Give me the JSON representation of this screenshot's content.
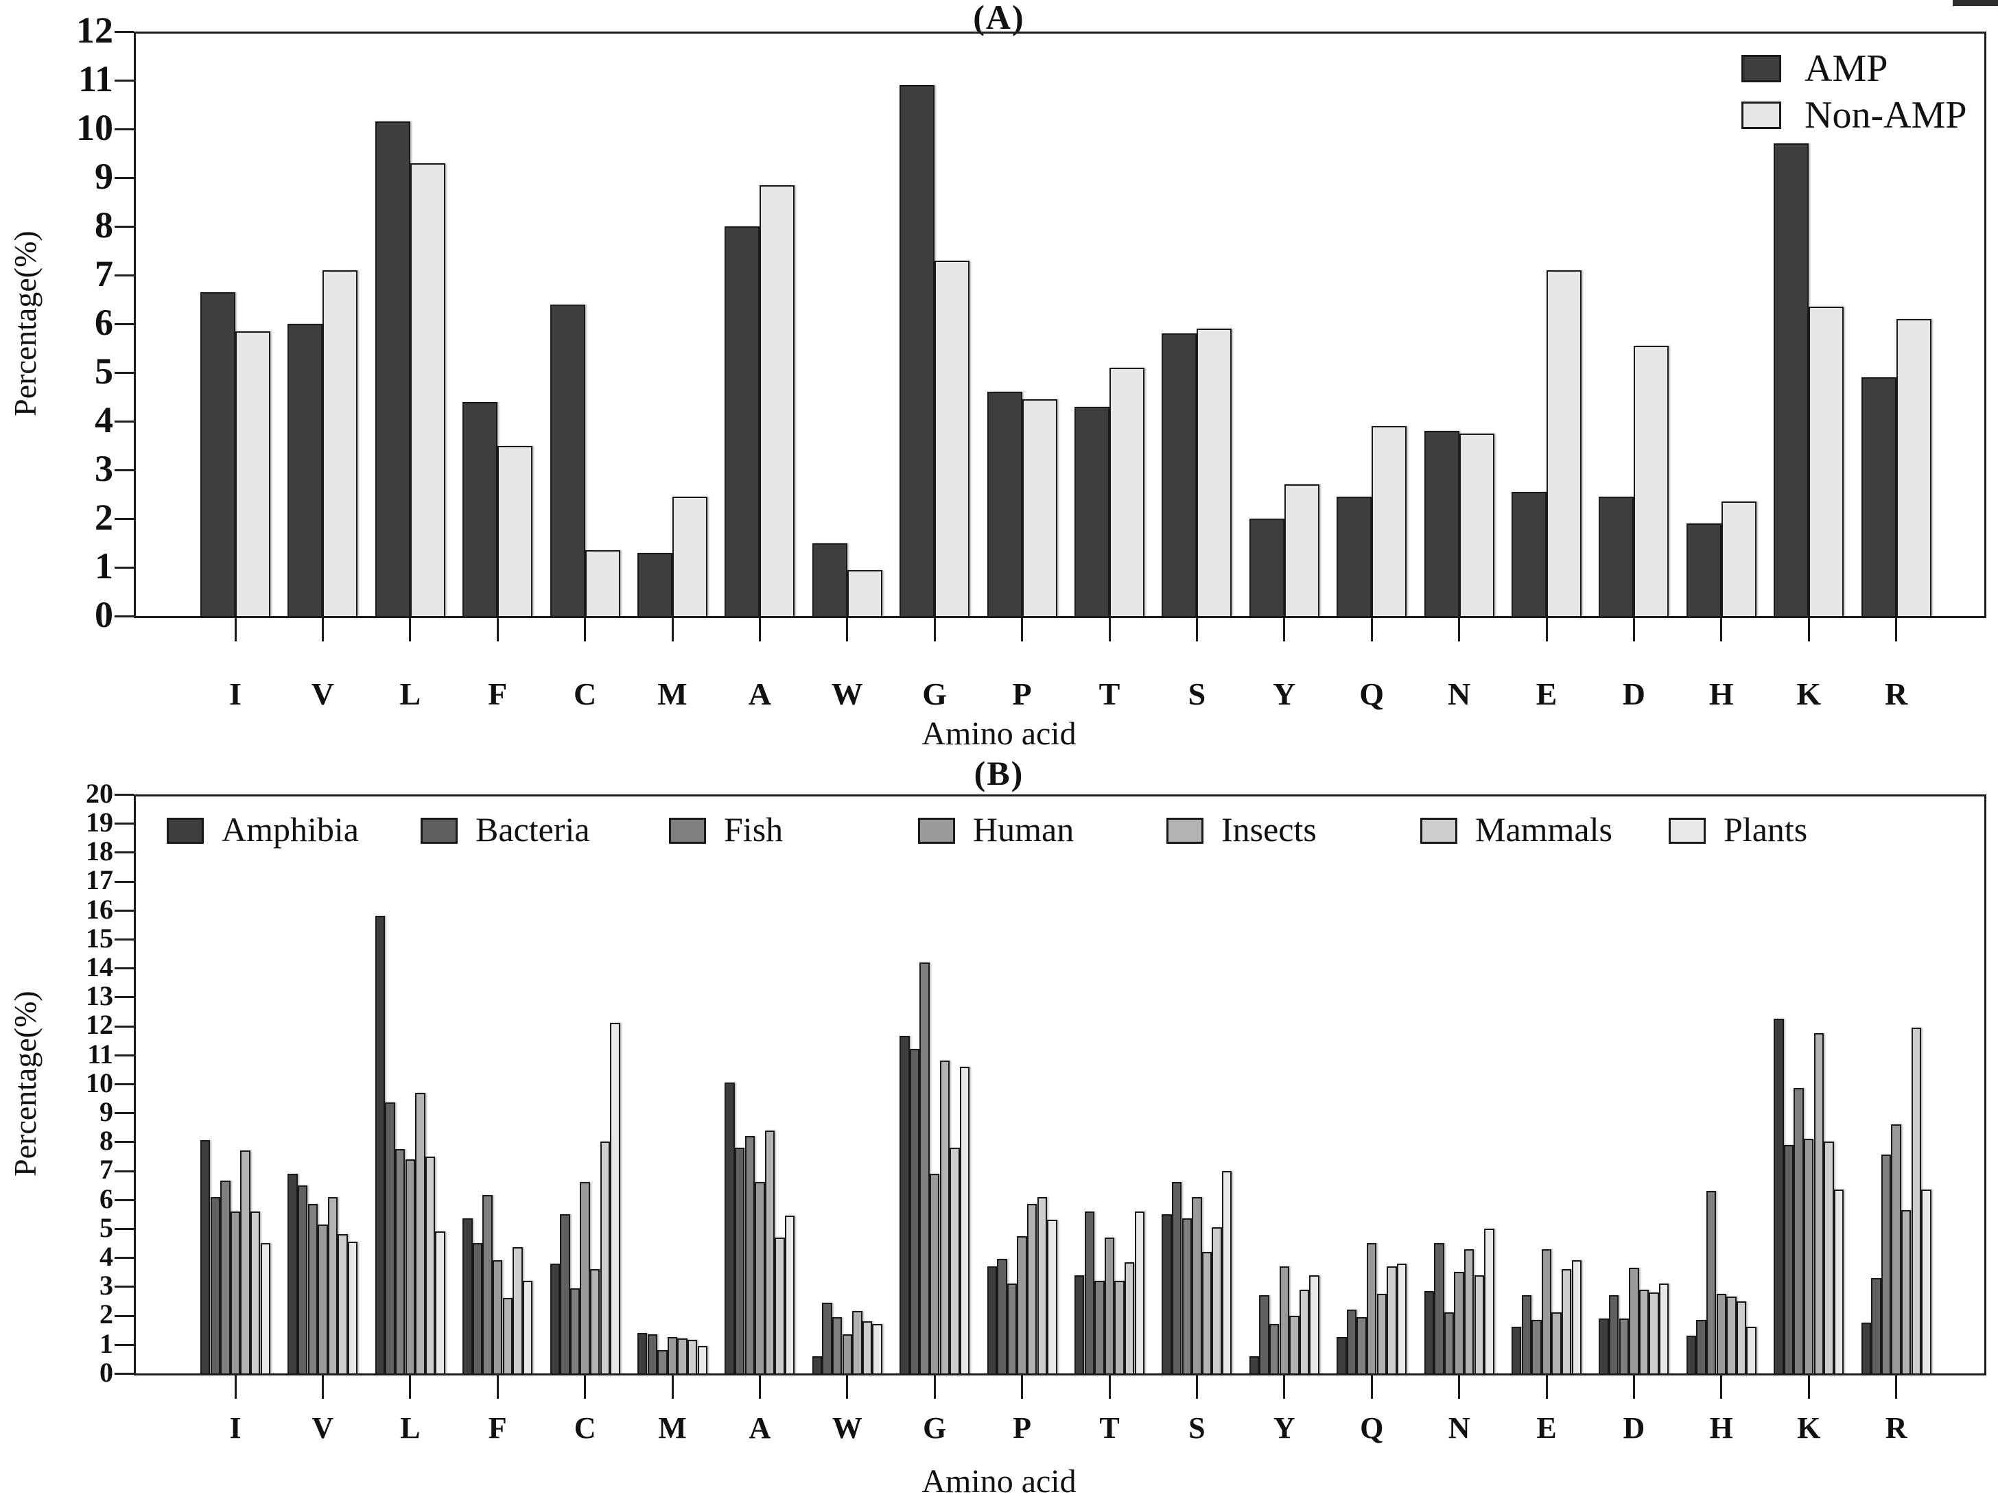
{
  "colors": {
    "axis": "#1c1c1c",
    "bar_border": "#1a1a1a",
    "background": "#ffffff"
  },
  "chart_data": [
    {
      "type": "bar",
      "title": "(A)",
      "xlabel": "Amino acid",
      "ylabel": "Percentage(%)",
      "ylim": [
        0,
        12
      ],
      "ytick_step": 1,
      "grid": false,
      "legend_position": "top-right-inside",
      "categories": [
        "I",
        "V",
        "L",
        "F",
        "C",
        "M",
        "A",
        "W",
        "G",
        "P",
        "T",
        "S",
        "Y",
        "Q",
        "N",
        "E",
        "D",
        "H",
        "K",
        "R"
      ],
      "series": [
        {
          "name": "AMP",
          "color": "#3e3e3e",
          "values": [
            6.65,
            6.0,
            10.15,
            4.4,
            6.4,
            1.3,
            8.0,
            1.5,
            10.9,
            4.6,
            4.3,
            5.8,
            2.0,
            2.45,
            3.8,
            2.55,
            2.45,
            1.9,
            9.7,
            4.9
          ]
        },
        {
          "name": "Non-AMP",
          "color": "#e7e7e7",
          "values": [
            5.85,
            7.1,
            9.3,
            3.5,
            1.35,
            2.45,
            8.85,
            0.95,
            7.3,
            4.45,
            5.1,
            5.9,
            2.7,
            3.9,
            3.75,
            7.1,
            5.55,
            2.35,
            6.35,
            6.1
          ]
        }
      ]
    },
    {
      "type": "bar",
      "title": "(B)",
      "xlabel": "Amino acid",
      "ylabel": "Percentage(%)",
      "ylim": [
        0,
        20
      ],
      "ytick_step": 1,
      "grid": false,
      "legend_position": "top-inside-row",
      "categories": [
        "I",
        "V",
        "L",
        "F",
        "C",
        "M",
        "A",
        "W",
        "G",
        "P",
        "T",
        "S",
        "Y",
        "Q",
        "N",
        "E",
        "D",
        "H",
        "K",
        "R"
      ],
      "series": [
        {
          "name": "Amphibia",
          "color": "#3e3e3e",
          "values": [
            8.05,
            6.9,
            15.8,
            5.35,
            3.8,
            1.4,
            10.05,
            0.6,
            11.65,
            3.7,
            3.4,
            5.5,
            0.6,
            1.25,
            2.85,
            1.6,
            1.9,
            1.3,
            12.25,
            1.75
          ]
        },
        {
          "name": "Bacteria",
          "color": "#606060",
          "values": [
            6.1,
            6.5,
            9.35,
            4.5,
            5.5,
            1.35,
            7.8,
            2.45,
            11.2,
            3.95,
            5.6,
            6.6,
            2.7,
            2.2,
            4.5,
            2.7,
            2.7,
            1.85,
            7.9,
            3.3
          ]
        },
        {
          "name": "Fish",
          "color": "#7f7f7f",
          "values": [
            6.65,
            5.85,
            7.75,
            6.15,
            2.95,
            0.8,
            8.2,
            1.95,
            14.2,
            3.1,
            3.2,
            5.35,
            1.7,
            1.95,
            2.1,
            1.85,
            1.9,
            6.3,
            9.85,
            7.55
          ]
        },
        {
          "name": "Human",
          "color": "#9a9a9a",
          "values": [
            5.6,
            5.15,
            7.4,
            3.9,
            6.6,
            1.25,
            6.6,
            1.35,
            6.9,
            4.75,
            4.7,
            6.1,
            3.7,
            4.5,
            3.5,
            4.3,
            3.65,
            2.75,
            8.1,
            8.6
          ]
        },
        {
          "name": "Insects",
          "color": "#b3b3b3",
          "values": [
            7.7,
            6.1,
            9.7,
            2.6,
            3.6,
            1.2,
            8.4,
            2.15,
            10.8,
            5.85,
            3.2,
            4.2,
            2.0,
            2.75,
            4.3,
            2.1,
            2.9,
            2.65,
            11.75,
            5.65
          ]
        },
        {
          "name": "Mammals",
          "color": "#cecece",
          "values": [
            5.6,
            4.8,
            7.5,
            4.35,
            8.0,
            1.15,
            4.7,
            1.8,
            7.8,
            6.1,
            3.85,
            5.05,
            2.9,
            3.7,
            3.4,
            3.6,
            2.8,
            2.5,
            8.0,
            11.95
          ]
        },
        {
          "name": "Plants",
          "color": "#e9e9e9",
          "values": [
            4.5,
            4.55,
            4.9,
            3.2,
            12.1,
            0.95,
            5.45,
            1.7,
            10.6,
            5.3,
            5.6,
            7.0,
            3.4,
            3.8,
            5.0,
            3.9,
            3.1,
            1.6,
            6.35,
            6.35
          ]
        }
      ]
    }
  ]
}
